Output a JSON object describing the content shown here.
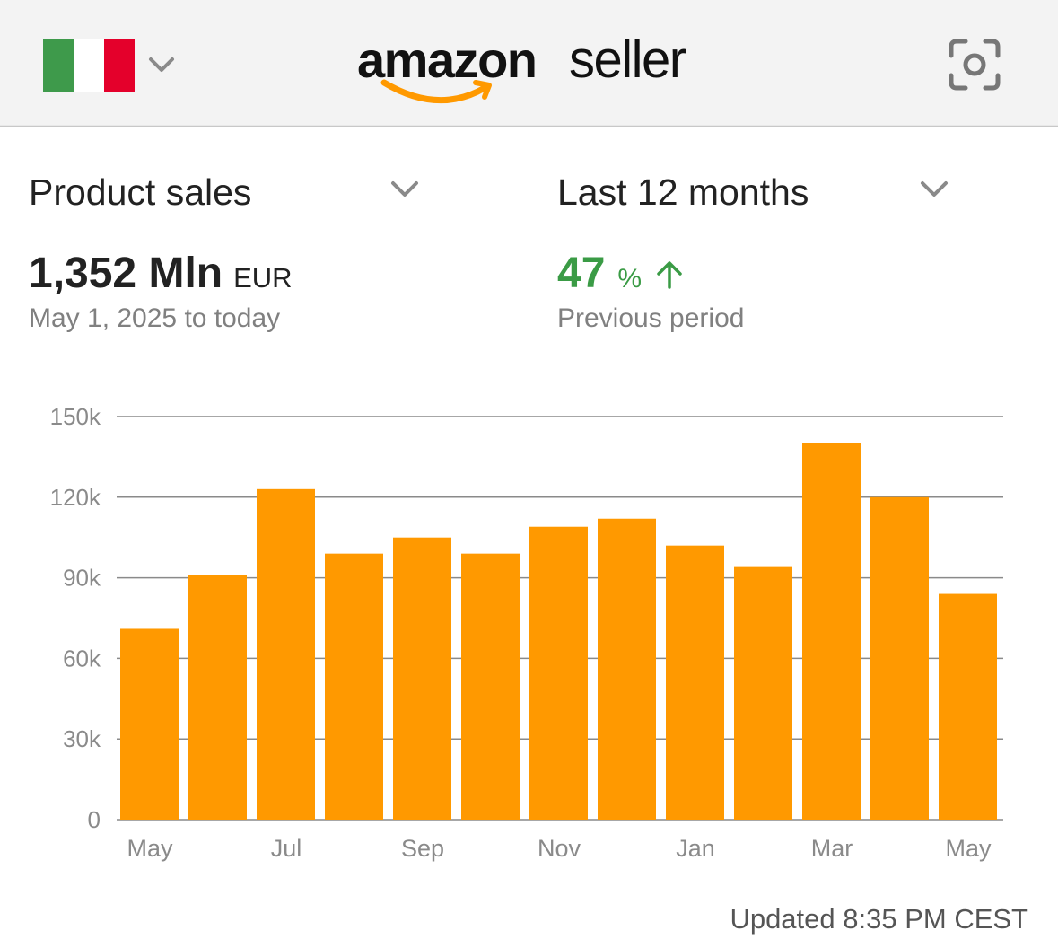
{
  "header": {
    "logo_brand": "amazon",
    "logo_product": "seller"
  },
  "summary": {
    "metric": "Product sales",
    "period": "Last 12 months",
    "total": "1,352 Mln",
    "currency": "EUR",
    "date_range": "May 1, 2025 to today",
    "change": 47,
    "change_unit": "%",
    "change_label": "Previous period"
  },
  "chart_data": {
    "type": "bar",
    "categories": [
      "May",
      null,
      "Jul",
      null,
      "Sep",
      null,
      "Nov",
      null,
      "Jan",
      null,
      "Mar",
      null,
      "May"
    ],
    "values": [
      71000,
      91000,
      123000,
      99000,
      105000,
      99000,
      109000,
      112000,
      102000,
      94000,
      140000,
      120000,
      84000
    ],
    "color": "#ff9900",
    "ylim": [
      0,
      150000
    ],
    "yticks": [
      0,
      {
        "value": 30000,
        "label": "30k"
      },
      {
        "value": 60000,
        "label": "60k"
      },
      {
        "value": 90000,
        "label": "90k"
      },
      {
        "value": 120000,
        "label": "120k"
      },
      {
        "value": 150000,
        "label": "150k"
      }
    ],
    "grid": true
  },
  "footer": {
    "updated": "Updated 8:35 PM CEST"
  }
}
